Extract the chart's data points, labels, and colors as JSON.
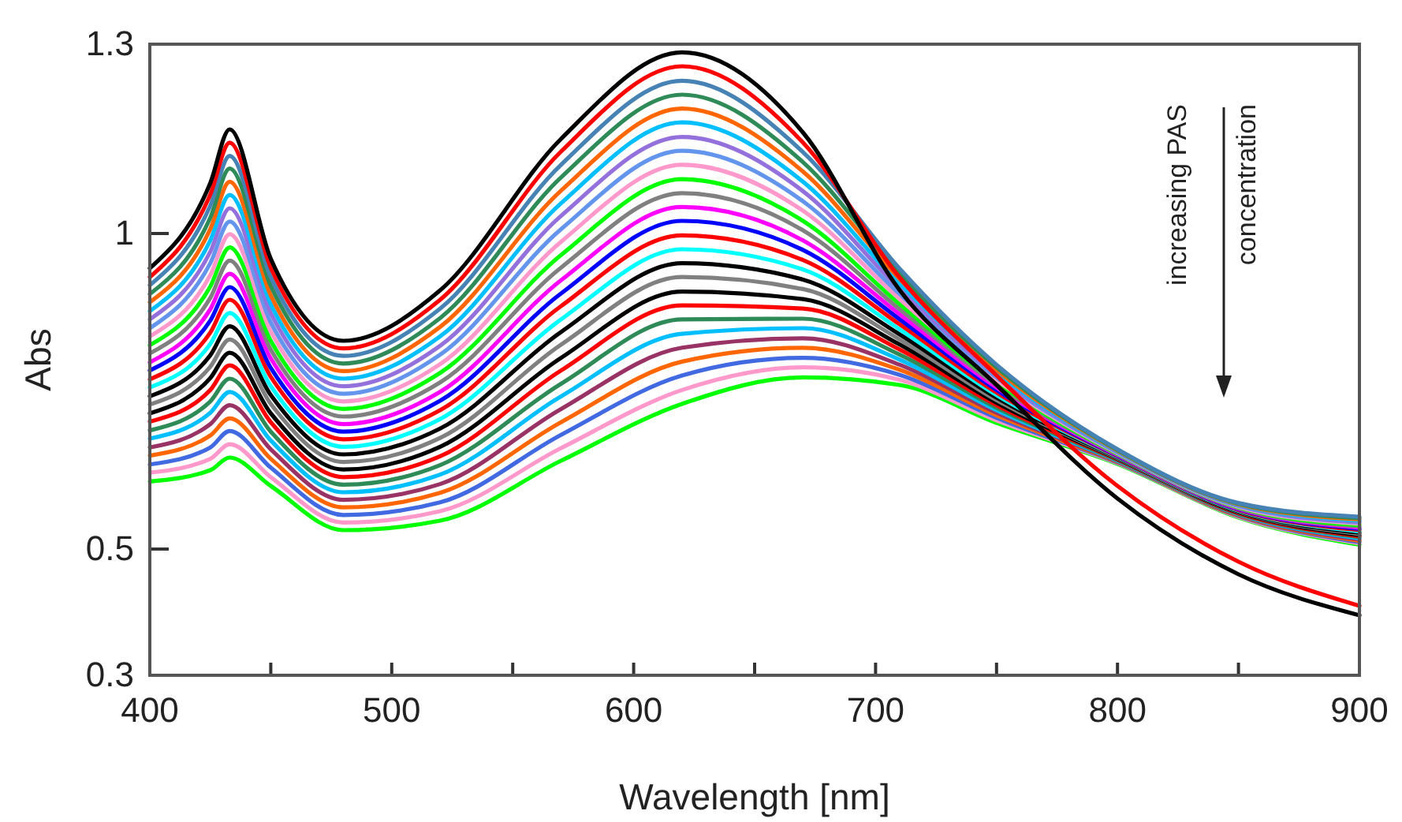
{
  "chart_data": {
    "type": "line",
    "xlabel": "Wavelength [nm]",
    "ylabel": "Abs",
    "x": [
      400,
      425,
      433,
      450,
      480,
      520,
      570,
      620,
      670,
      710,
      750,
      800,
      850,
      900
    ],
    "xlim": [
      400,
      900
    ],
    "xticks": [
      400,
      {
        "value": 450,
        "label": null
      },
      500,
      {
        "value": 550,
        "label": null
      },
      600,
      {
        "value": 650,
        "label": null
      },
      700,
      {
        "value": 750,
        "label": null
      },
      800,
      {
        "value": 850,
        "label": null
      },
      900
    ],
    "ylim": [
      0.3,
      1.3
    ],
    "yticks": [
      0.3,
      0.5,
      1,
      1.3
    ],
    "grid": false,
    "marker": "none",
    "line_style": "solid",
    "annotations": [
      "increasing PAS",
      "concentration"
    ],
    "series": [
      {
        "color": "#000000",
        "values": [
          0.945,
          1.08,
          1.165,
          0.96,
          0.83,
          0.91,
          1.15,
          1.287,
          1.16,
          0.91,
          0.76,
          0.58,
          0.46,
          0.395
        ]
      },
      {
        "color": "#ff0000",
        "values": [
          0.931,
          1.062,
          1.144,
          0.946,
          0.818,
          0.895,
          1.13,
          1.265,
          1.144,
          0.93,
          0.775,
          0.6,
          0.48,
          0.41
        ]
      },
      {
        "color": "#4682b4",
        "values": [
          0.918,
          1.044,
          1.123,
          0.931,
          0.806,
          0.881,
          1.109,
          1.242,
          1.129,
          0.944,
          0.792,
          0.658,
          0.573,
          0.551
        ]
      },
      {
        "color": "#2e8b57",
        "values": [
          0.904,
          1.025,
          1.103,
          0.917,
          0.794,
          0.866,
          1.089,
          1.22,
          1.113,
          0.936,
          0.788,
          0.657,
          0.572,
          0.549
        ]
      },
      {
        "color": "#ff6600",
        "values": [
          0.891,
          1.007,
          1.082,
          0.902,
          0.782,
          0.852,
          1.068,
          1.198,
          1.098,
          0.928,
          0.784,
          0.656,
          0.571,
          0.547
        ]
      },
      {
        "color": "#00bfff",
        "values": [
          0.877,
          0.989,
          1.061,
          0.888,
          0.77,
          0.837,
          1.048,
          1.176,
          1.082,
          0.92,
          0.78,
          0.655,
          0.57,
          0.545
        ]
      },
      {
        "color": "#9370db",
        "values": [
          0.864,
          0.971,
          1.04,
          0.874,
          0.758,
          0.822,
          1.028,
          1.153,
          1.067,
          0.912,
          0.776,
          0.654,
          0.569,
          0.543
        ]
      },
      {
        "color": "#6495ed",
        "values": [
          0.85,
          0.953,
          1.019,
          0.859,
          0.746,
          0.808,
          1.007,
          1.131,
          1.051,
          0.904,
          0.772,
          0.653,
          0.568,
          0.542
        ]
      },
      {
        "color": "#ff99cc",
        "values": [
          0.837,
          0.934,
          0.999,
          0.845,
          0.734,
          0.793,
          0.987,
          1.109,
          1.036,
          0.896,
          0.768,
          0.652,
          0.567,
          0.54
        ]
      },
      {
        "color": "#00ff00",
        "values": [
          0.823,
          0.916,
          0.978,
          0.83,
          0.722,
          0.779,
          0.966,
          1.086,
          1.02,
          0.888,
          0.764,
          0.651,
          0.566,
          0.538
        ]
      },
      {
        "color": "#808080",
        "values": [
          0.81,
          0.898,
          0.957,
          0.816,
          0.71,
          0.764,
          0.946,
          1.064,
          1.005,
          0.88,
          0.76,
          0.65,
          0.565,
          0.536
        ]
      },
      {
        "color": "#ff00ff",
        "values": [
          0.796,
          0.88,
          0.936,
          0.802,
          0.698,
          0.749,
          0.926,
          1.042,
          0.989,
          0.872,
          0.756,
          0.649,
          0.564,
          0.534
        ]
      },
      {
        "color": "#0000ff",
        "values": [
          0.783,
          0.862,
          0.915,
          0.787,
          0.686,
          0.735,
          0.905,
          1.02,
          0.974,
          0.864,
          0.752,
          0.648,
          0.563,
          0.532
        ]
      },
      {
        "color": "#ff0000",
        "values": [
          0.769,
          0.843,
          0.895,
          0.773,
          0.674,
          0.72,
          0.885,
          0.997,
          0.958,
          0.856,
          0.748,
          0.647,
          0.562,
          0.53
        ]
      },
      {
        "color": "#00ffff",
        "values": [
          0.756,
          0.825,
          0.874,
          0.758,
          0.662,
          0.706,
          0.864,
          0.975,
          0.943,
          0.848,
          0.744,
          0.646,
          0.561,
          0.528
        ]
      },
      {
        "color": "#000000",
        "values": [
          0.742,
          0.807,
          0.853,
          0.744,
          0.65,
          0.691,
          0.844,
          0.953,
          0.927,
          0.84,
          0.74,
          0.645,
          0.56,
          0.526
        ]
      },
      {
        "color": "#808080",
        "values": [
          0.729,
          0.789,
          0.832,
          0.73,
          0.638,
          0.676,
          0.824,
          0.931,
          0.912,
          0.832,
          0.736,
          0.644,
          0.559,
          0.524
        ]
      },
      {
        "color": "#000000",
        "values": [
          0.715,
          0.771,
          0.811,
          0.715,
          0.626,
          0.662,
          0.803,
          0.908,
          0.896,
          0.824,
          0.732,
          0.643,
          0.558,
          0.522
        ]
      },
      {
        "color": "#ff0000",
        "values": [
          0.702,
          0.752,
          0.791,
          0.701,
          0.614,
          0.647,
          0.783,
          0.886,
          0.881,
          0.816,
          0.728,
          0.642,
          0.557,
          0.52
        ]
      },
      {
        "color": "#2e8b57",
        "values": [
          0.688,
          0.734,
          0.77,
          0.686,
          0.602,
          0.633,
          0.762,
          0.864,
          0.865,
          0.808,
          0.724,
          0.641,
          0.556,
          0.519
        ]
      },
      {
        "color": "#00bfff",
        "values": [
          0.675,
          0.716,
          0.749,
          0.672,
          0.59,
          0.618,
          0.742,
          0.841,
          0.85,
          0.8,
          0.72,
          0.64,
          0.555,
          0.517
        ]
      },
      {
        "color": "#993366",
        "values": [
          0.661,
          0.698,
          0.728,
          0.658,
          0.578,
          0.603,
          0.722,
          0.819,
          0.834,
          0.792,
          0.716,
          0.639,
          0.554,
          0.515
        ]
      },
      {
        "color": "#ff6600",
        "values": [
          0.648,
          0.68,
          0.707,
          0.643,
          0.566,
          0.589,
          0.701,
          0.797,
          0.819,
          0.784,
          0.712,
          0.638,
          0.553,
          0.513
        ]
      },
      {
        "color": "#4169e1",
        "values": [
          0.634,
          0.661,
          0.687,
          0.629,
          0.554,
          0.574,
          0.681,
          0.775,
          0.803,
          0.776,
          0.708,
          0.637,
          0.552,
          0.511
        ]
      },
      {
        "color": "#ff99cc",
        "values": [
          0.621,
          0.643,
          0.666,
          0.614,
          0.542,
          0.56,
          0.66,
          0.752,
          0.788,
          0.768,
          0.704,
          0.636,
          0.551,
          0.509
        ]
      },
      {
        "color": "#00ff00",
        "values": [
          0.607,
          0.625,
          0.645,
          0.6,
          0.53,
          0.545,
          0.64,
          0.73,
          0.772,
          0.76,
          0.7,
          0.635,
          0.55,
          0.507
        ]
      }
    ]
  }
}
